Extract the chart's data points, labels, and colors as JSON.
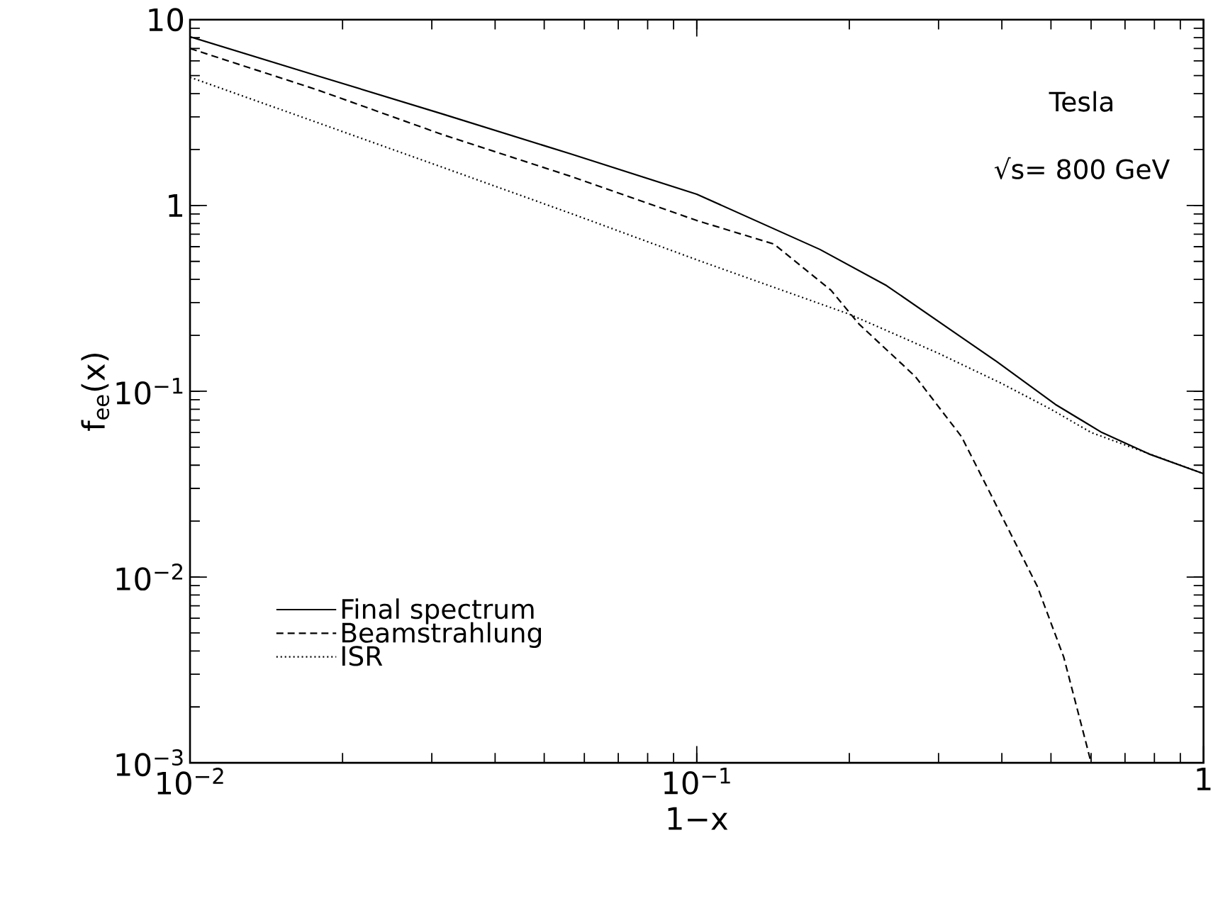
{
  "chart_data": {
    "type": "line",
    "xlabel": "1−x",
    "ylabel": "f$_{ee}$(x)",
    "log": "xy",
    "legend": "bottom left",
    "grid": false,
    "xlim": [
      0.01,
      1
    ],
    "ylim": [
      0.001,
      10
    ],
    "xticks": [
      {
        "value": 0.01,
        "label": "10$^{−2}$"
      },
      {
        "value": 0.1,
        "label": "10$^{−1}$"
      },
      1
    ],
    "yticks": [
      {
        "value": 0.001,
        "label": "10$^{−3}$"
      },
      {
        "value": 0.01,
        "label": "10$^{−2}$"
      },
      {
        "value": 0.1,
        "label": "10$^{−1}$"
      },
      1,
      10
    ],
    "annotations": [
      "Tesla",
      "√s= 800 GeV"
    ],
    "series": [
      {
        "name": "Final spectrum",
        "color": "#000000",
        "line_style": "solid",
        "x": [
          0.01,
          0.0178,
          0.0316,
          0.0562,
          0.1,
          0.175,
          0.237,
          0.333,
          0.39,
          0.51,
          0.63,
          0.78,
          1
        ],
        "values": [
          8.1,
          5.0,
          3.1,
          1.9,
          1.15,
          0.58,
          0.37,
          0.195,
          0.145,
          0.085,
          0.06,
          0.046,
          0.036
        ]
      },
      {
        "name": "Beamstrahlung",
        "color": "#000000",
        "line_style": "dashed",
        "x": [
          0.01,
          0.0178,
          0.0316,
          0.0562,
          0.1,
          0.142,
          0.184,
          0.209,
          0.27,
          0.333,
          0.38,
          0.47,
          0.53,
          0.59,
          0.6
        ],
        "values": [
          7.0,
          4.2,
          2.4,
          1.44,
          0.83,
          0.62,
          0.35,
          0.23,
          0.12,
          0.057,
          0.028,
          0.0089,
          0.0037,
          0.0012,
          0.001
        ]
      },
      {
        "name": "ISR",
        "color": "#000000",
        "line_style": "dotted",
        "x": [
          0.01,
          0.0178,
          0.0316,
          0.0562,
          0.1,
          0.2,
          0.3,
          0.4,
          0.5,
          0.6,
          0.8,
          1
        ],
        "values": [
          4.9,
          2.8,
          1.6,
          0.91,
          0.51,
          0.26,
          0.16,
          0.11,
          0.08,
          0.06,
          0.045,
          0.036
        ]
      }
    ]
  }
}
